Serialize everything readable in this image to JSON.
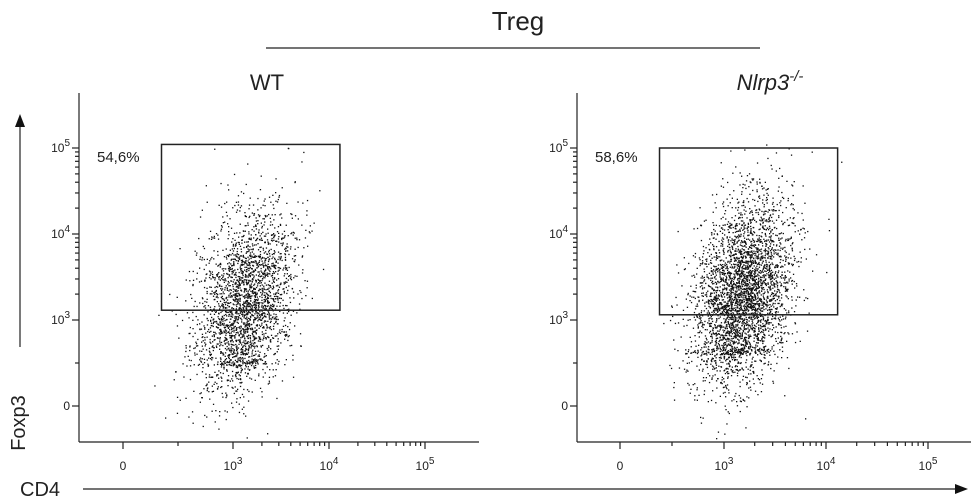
{
  "figure": {
    "title": "Treg",
    "x_axis_label": "CD4",
    "y_axis_label": "Foxp3"
  },
  "chart_data": [
    {
      "type": "scatter",
      "title": "WT",
      "title_italic": false,
      "xlabel": "CD4",
      "ylabel": "Foxp3",
      "x_scale": "biexponential",
      "y_scale": "biexponential",
      "x_ticks": [
        {
          "value": 0,
          "label": "0"
        },
        {
          "value": 1000,
          "label": "10",
          "exp": "3"
        },
        {
          "value": 10000,
          "label": "10",
          "exp": "4"
        },
        {
          "value": 100000,
          "label": "10",
          "exp": "5"
        }
      ],
      "y_ticks": [
        {
          "value": 0,
          "label": "0"
        },
        {
          "value": 1000,
          "label": "10",
          "exp": "3"
        },
        {
          "value": 10000,
          "label": "10",
          "exp": "4"
        },
        {
          "value": 100000,
          "label": "10",
          "exp": "5"
        }
      ],
      "gate": {
        "label": "54,6%",
        "x_range": [
          350,
          13000
        ],
        "y_range": [
          1300,
          110000
        ]
      },
      "population": {
        "x_center": 1300,
        "y_center": 1500,
        "event_count": 2600
      }
    },
    {
      "type": "scatter",
      "title": "Nlrp3",
      "title_sup": "-/-",
      "title_italic": true,
      "xlabel": "CD4",
      "ylabel": "Foxp3",
      "x_scale": "biexponential",
      "y_scale": "biexponential",
      "x_ticks": [
        {
          "value": 0,
          "label": "0"
        },
        {
          "value": 1000,
          "label": "10",
          "exp": "3"
        },
        {
          "value": 10000,
          "label": "10",
          "exp": "4"
        },
        {
          "value": 100000,
          "label": "10",
          "exp": "5"
        }
      ],
      "y_ticks": [
        {
          "value": 0,
          "label": "0"
        },
        {
          "value": 1000,
          "label": "10",
          "exp": "3"
        },
        {
          "value": 10000,
          "label": "10",
          "exp": "4"
        },
        {
          "value": 100000,
          "label": "10",
          "exp": "5"
        }
      ],
      "gate": {
        "label": "58,6%",
        "x_range": [
          380,
          13000
        ],
        "y_range": [
          1150,
          100000
        ]
      },
      "population": {
        "x_center": 1500,
        "y_center": 2000,
        "event_count": 3600
      }
    }
  ]
}
